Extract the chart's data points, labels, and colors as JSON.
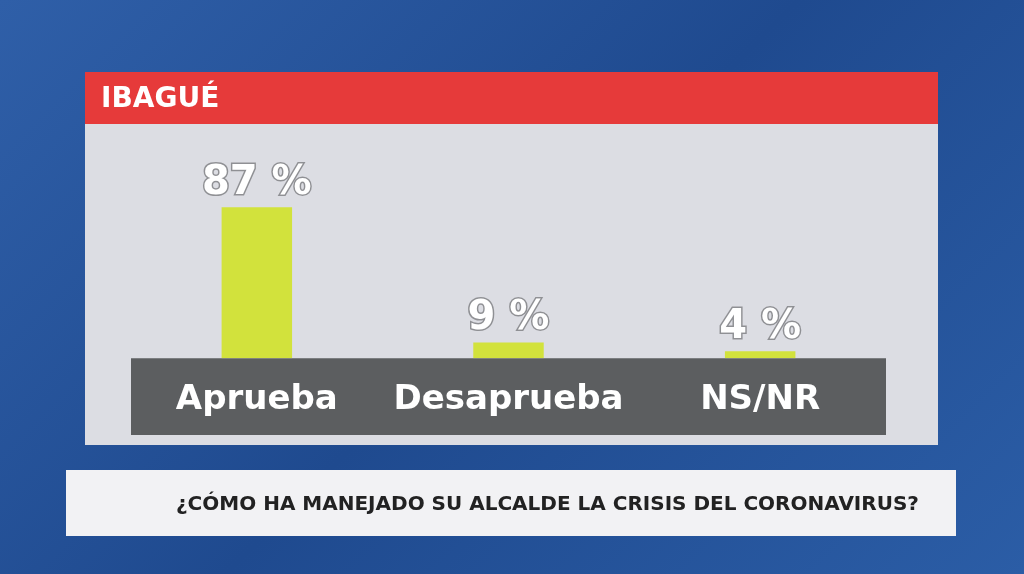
{
  "chart_data": {
    "type": "bar",
    "title": "IBAGUÉ",
    "subtitle": "¿CÓMO HA MANEJADO SU ALCALDE LA CRISIS DEL CORONAVIRUS?",
    "categories": [
      "Aprueba",
      "Desaprueba",
      "NS/NR"
    ],
    "values": [
      87,
      9,
      4
    ],
    "value_labels": [
      "87 %",
      "9 %",
      "4 %"
    ],
    "color": "#d2e23c",
    "tick_labels": "x"
  }
}
